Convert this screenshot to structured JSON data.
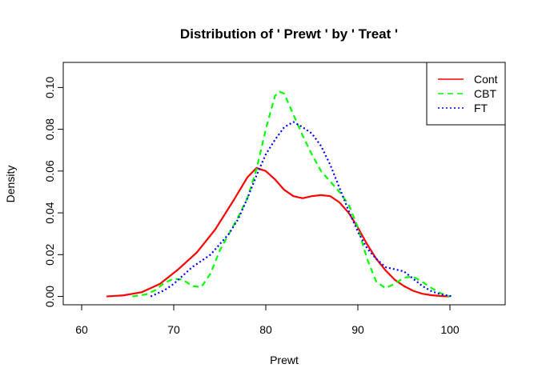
{
  "chart_data": {
    "type": "line",
    "title": "Distribution of ' Prewt ' by ' Treat '",
    "xlabel": "Prewt",
    "ylabel": "Density",
    "xlim": [
      58,
      106
    ],
    "ylim": [
      -0.004,
      0.112
    ],
    "x_ticks": [
      60,
      70,
      80,
      90,
      100
    ],
    "y_ticks": [
      0.0,
      0.02,
      0.04,
      0.06,
      0.08,
      0.1
    ],
    "x_tick_labels": [
      "60",
      "70",
      "80",
      "90",
      "100"
    ],
    "y_tick_labels": [
      "0.00",
      "0.02",
      "0.04",
      "0.06",
      "0.08",
      "0.10"
    ],
    "grid": false,
    "legend_position": "top-right",
    "series": [
      {
        "name": "Cont",
        "color": "#ff0000",
        "line_style": "solid",
        "x": [
          62.7,
          64.5,
          66.5,
          68.5,
          70.5,
          72.5,
          74.5,
          76.5,
          78.0,
          79.0,
          80.0,
          81.0,
          82.0,
          83.0,
          84.0,
          85.0,
          86.0,
          87.0,
          88.0,
          89.0,
          90.0,
          91.0,
          92.0,
          93.0,
          94.0,
          95.0,
          96.0,
          97.0,
          98.0,
          99.0,
          100.0
        ],
        "y": [
          0.0,
          0.0005,
          0.002,
          0.006,
          0.013,
          0.021,
          0.032,
          0.046,
          0.057,
          0.0615,
          0.06,
          0.056,
          0.051,
          0.048,
          0.047,
          0.048,
          0.0485,
          0.048,
          0.045,
          0.04,
          0.033,
          0.025,
          0.018,
          0.0125,
          0.008,
          0.005,
          0.0027,
          0.0013,
          0.0006,
          0.0002,
          0.0
        ]
      },
      {
        "name": "CBT",
        "color": "#00ff00",
        "line_style": "dashed",
        "x": [
          65.5,
          67.0,
          68.0,
          69.0,
          70.0,
          71.0,
          72.0,
          73.0,
          74.0,
          75.0,
          76.0,
          77.0,
          78.0,
          79.0,
          80.0,
          81.0,
          81.5,
          82.0,
          83.0,
          84.0,
          85.0,
          86.0,
          87.0,
          88.0,
          89.0,
          90.0,
          91.0,
          92.0,
          93.0,
          94.0,
          95.0,
          96.0,
          97.0,
          98.0,
          99.0,
          100.0
        ],
        "y": [
          0.0,
          0.001,
          0.003,
          0.0065,
          0.0085,
          0.008,
          0.005,
          0.0045,
          0.011,
          0.022,
          0.03,
          0.038,
          0.047,
          0.061,
          0.08,
          0.096,
          0.098,
          0.097,
          0.087,
          0.077,
          0.068,
          0.06,
          0.055,
          0.05,
          0.044,
          0.033,
          0.018,
          0.007,
          0.004,
          0.006,
          0.009,
          0.0095,
          0.007,
          0.004,
          0.0015,
          0.0
        ]
      },
      {
        "name": "FT",
        "color": "#0000ff",
        "line_style": "dotted",
        "x": [
          67.5,
          69.0,
          70.0,
          71.0,
          72.0,
          73.0,
          74.0,
          75.0,
          76.0,
          77.0,
          78.0,
          79.0,
          80.0,
          81.0,
          82.0,
          83.0,
          84.0,
          85.0,
          86.0,
          87.0,
          88.0,
          89.0,
          90.0,
          91.0,
          92.0,
          93.0,
          94.0,
          95.0,
          96.0,
          97.0,
          98.0,
          99.0,
          100.3
        ],
        "y": [
          0.0,
          0.003,
          0.006,
          0.01,
          0.014,
          0.017,
          0.02,
          0.025,
          0.03,
          0.037,
          0.047,
          0.058,
          0.068,
          0.075,
          0.081,
          0.0835,
          0.081,
          0.078,
          0.072,
          0.063,
          0.052,
          0.041,
          0.031,
          0.023,
          0.018,
          0.014,
          0.013,
          0.012,
          0.0085,
          0.005,
          0.0025,
          0.001,
          0.0
        ]
      }
    ]
  }
}
